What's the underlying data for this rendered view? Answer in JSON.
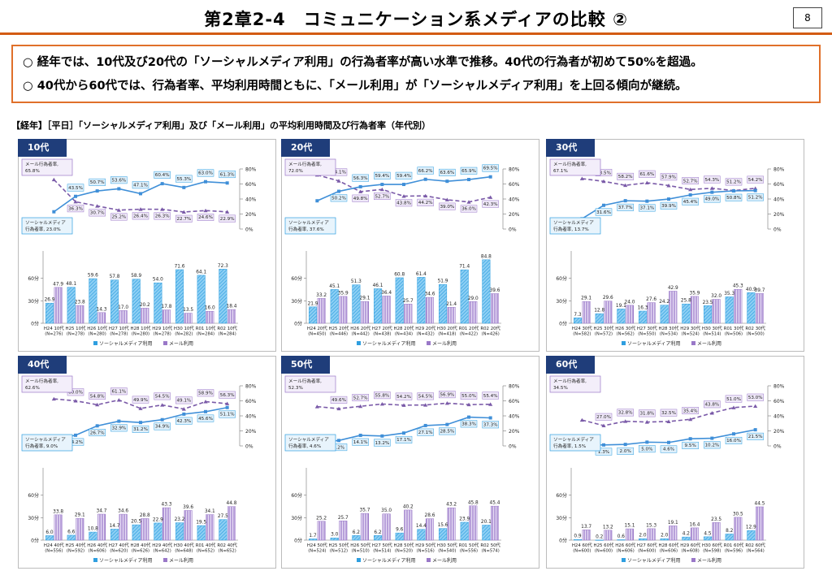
{
  "page": {
    "title": "第2章2-4　コミュニケーション系メディアの比較 ②",
    "page_number": "8",
    "summary": [
      "○ 経年では、10代及び20代の「ソーシャルメディア利用」の行為者率が高い水準で推移。40代の行為者が初めて50%を超過。",
      "○ 40代から60代では、行為者率、平均利用時間ともに、「メール利用」が「ソーシャルメディア利用」を上回る傾向が継続。"
    ],
    "caption": "【経年】［平日］「ソーシャルメディア利用」及び「メール利用」の平均利用時間及び行為者率（年代別）"
  },
  "colors": {
    "accent": "#d35b13",
    "tag": "#1f3d7a",
    "social": "#2f9fe0",
    "mail": "#9a78c8",
    "social_line": "#3f8fd8",
    "mail_line": "#7a5aa8"
  },
  "legend": {
    "social": "ソーシャルメディア利用",
    "mail": "メール利用"
  },
  "labels": {
    "rate_ticks": [
      "80%",
      "60%",
      "40%",
      "20%",
      "0%"
    ],
    "time_ticks": [
      "60分",
      "30分",
      "0分"
    ]
  },
  "chart_data": [
    {
      "type": "bar",
      "panel": "10代",
      "callout_mail": [
        "メール行為者率,",
        "65.8%"
      ],
      "callout_social": [
        "ソーシャルメディア",
        "行為者率, 23.0%"
      ],
      "callout_mail_side": "top",
      "callout_social_side": "bottom",
      "categories": [
        [
          "H24 10代",
          "(N=276)"
        ],
        [
          "H25 10代",
          "(N=278)"
        ],
        [
          "H26 10代",
          "(N=280)"
        ],
        [
          "H27 10代",
          "(N=278)"
        ],
        [
          "H28 10代",
          "(N=280)"
        ],
        [
          "H29 10代",
          "(N=278)"
        ],
        [
          "H30 10代",
          "(N=282)"
        ],
        [
          "R01 10代",
          "(N=284)"
        ],
        [
          "R02 10代",
          "(N=284)"
        ]
      ],
      "series": [
        {
          "name": "ソーシャルメディア利用",
          "values": [
            26.9,
            48.1,
            59.6,
            57.8,
            58.9,
            54.0,
            71.6,
            64.1,
            72.3
          ],
          "rate": [
            23.0,
            43.5,
            50.7,
            53.6,
            47.1,
            60.4,
            55.3,
            63.0,
            61.3
          ]
        },
        {
          "name": "メール利用",
          "values": [
            47.9,
            23.8,
            14.3,
            17.0,
            20.2,
            17.8,
            13.5,
            16.0,
            18.4
          ],
          "rate": [
            65.8,
            36.3,
            30.7,
            25.2,
            26.4,
            26.3,
            22.7,
            24.6,
            22.9
          ]
        }
      ],
      "ylim_time": [
        0,
        90
      ],
      "ylim_rate": [
        0,
        80
      ]
    },
    {
      "type": "bar",
      "panel": "20代",
      "callout_mail": [
        "メール行為者率,",
        "72.0%"
      ],
      "callout_social": [
        "ソーシャルメディア",
        "行為者率, 37.6%"
      ],
      "callout_mail_side": "top",
      "callout_social_side": "bottom",
      "categories": [
        [
          "H24 20代",
          "(N=450)"
        ],
        [
          "H25 20代",
          "(N=446)"
        ],
        [
          "H26 20代",
          "(N=442)"
        ],
        [
          "H27 20代",
          "(N=438)"
        ],
        [
          "H28 20代",
          "(N=434)"
        ],
        [
          "H29 20代",
          "(N=432)"
        ],
        [
          "H30 20代",
          "(N=418)"
        ],
        [
          "R01 20代",
          "(N=422)"
        ],
        [
          "R02 20代",
          "(N=426)"
        ]
      ],
      "series": [
        {
          "name": "ソーシャルメディア利用",
          "values": [
            21.9,
            45.1,
            51.3,
            46.1,
            60.8,
            61.4,
            51.9,
            71.4,
            84.8
          ],
          "rate": [
            37.6,
            50.2,
            56.3,
            59.4,
            59.4,
            66.2,
            63.6,
            65.9,
            69.5
          ]
        },
        {
          "name": "メール利用",
          "values": [
            33.2,
            35.9,
            29.1,
            36.4,
            25.7,
            34.6,
            21.4,
            29.0,
            39.6
          ],
          "rate": [
            72.0,
            64.1,
            49.8,
            52.7,
            43.8,
            44.2,
            39.0,
            36.0,
            42.3
          ]
        }
      ],
      "ylim_time": [
        0,
        90
      ],
      "ylim_rate": [
        0,
        80
      ]
    },
    {
      "type": "bar",
      "panel": "30代",
      "callout_mail": [
        "メール行為者率,",
        "67.1%"
      ],
      "callout_social": [
        "ソーシャルメディア",
        "行為者率, 13.7%"
      ],
      "callout_mail_side": "top",
      "callout_social_side": "bottom",
      "categories": [
        [
          "H24 30代",
          "(N=582)"
        ],
        [
          "H25 30代",
          "(N=572)"
        ],
        [
          "H26 30代",
          "(N=562)"
        ],
        [
          "H27 30代",
          "(N=550)"
        ],
        [
          "H28 30代",
          "(N=534)"
        ],
        [
          "H29 30代",
          "(N=524)"
        ],
        [
          "H30 30代",
          "(N=514)"
        ],
        [
          "R01 30代",
          "(N=506)"
        ],
        [
          "R02 30代",
          "(N=500)"
        ]
      ],
      "series": [
        {
          "name": "ソーシャルメディア利用",
          "values": [
            7.3,
            12.8,
            19.1,
            16.3,
            24.2,
            25.8,
            23.5,
            35.3,
            40.9
          ],
          "rate": [
            13.7,
            31.6,
            37.7,
            37.1,
            39.9,
            45.4,
            49.0,
            50.8,
            51.2
          ]
        },
        {
          "name": "メール利用",
          "values": [
            29.1,
            29.6,
            24.0,
            27.6,
            42.9,
            35.9,
            32.0,
            45.3,
            39.7
          ],
          "rate": [
            67.1,
            63.5,
            58.2,
            61.6,
            57.9,
            52.7,
            54.3,
            51.2,
            54.2
          ]
        }
      ],
      "ylim_time": [
        0,
        90
      ],
      "ylim_rate": [
        0,
        80
      ]
    },
    {
      "type": "bar",
      "panel": "40代",
      "callout_mail": [
        "メール行為者率,",
        "62.6%"
      ],
      "callout_social": [
        "ソーシャルメディア",
        "行為者率, 9.0%"
      ],
      "callout_mail_side": "top",
      "callout_social_side": "bottom",
      "categories": [
        [
          "H24 40代",
          "(N=556)"
        ],
        [
          "H25 40代",
          "(N=592)"
        ],
        [
          "H26 40代",
          "(N=606)"
        ],
        [
          "H27 40代",
          "(N=620)"
        ],
        [
          "H28 40代",
          "(N=626)"
        ],
        [
          "H29 40代",
          "(N=642)"
        ],
        [
          "H30 40代",
          "(N=648)"
        ],
        [
          "R01 40代",
          "(N=652)"
        ],
        [
          "R02 40代",
          "(N=652)"
        ]
      ],
      "series": [
        {
          "name": "ソーシャルメディア利用",
          "values": [
            6.0,
            6.6,
            10.8,
            14.7,
            20.5,
            22.9,
            23.2,
            19.5,
            27.5
          ],
          "rate": [
            9.0,
            14.2,
            26.7,
            32.9,
            31.2,
            34.9,
            42.3,
            45.6,
            51.1
          ]
        },
        {
          "name": "メール利用",
          "values": [
            33.8,
            29.1,
            34.7,
            34.6,
            28.8,
            43.3,
            39.6,
            34.1,
            44.8
          ],
          "rate": [
            62.6,
            60.0,
            54.8,
            61.1,
            49.9,
            54.5,
            49.1,
            58.9,
            56.3
          ]
        }
      ],
      "ylim_time": [
        0,
        90
      ],
      "ylim_rate": [
        0,
        80
      ]
    },
    {
      "type": "bar",
      "panel": "50代",
      "callout_mail": [
        "メール行為者率,",
        "52.3%"
      ],
      "callout_social": [
        "ソーシャルメディア",
        "行為者率, 4.6%"
      ],
      "callout_mail_side": "top",
      "callout_social_side": "bottom",
      "categories": [
        [
          "H24 50代",
          "(N=524)"
        ],
        [
          "H25 50代",
          "(N=512)"
        ],
        [
          "H26 50代",
          "(N=510)"
        ],
        [
          "H27 50代",
          "(N=514)"
        ],
        [
          "H28 50代",
          "(N=520)"
        ],
        [
          "H29 50代",
          "(N=516)"
        ],
        [
          "H30 50代",
          "(N=540)"
        ],
        [
          "R01 50代",
          "(N=556)"
        ],
        [
          "R02 50代",
          "(N=574)"
        ]
      ],
      "series": [
        {
          "name": "ソーシャルメディア利用",
          "values": [
            1.7,
            3.0,
            6.2,
            6.2,
            9.6,
            14.4,
            15.6,
            23.9,
            20.1
          ],
          "rate": [
            4.6,
            7.2,
            14.1,
            13.2,
            17.1,
            27.1,
            28.5,
            38.3,
            37.3
          ]
        },
        {
          "name": "メール利用",
          "values": [
            25.2,
            25.7,
            35.7,
            35.0,
            40.2,
            28.6,
            43.2,
            45.8,
            45.4
          ],
          "rate": [
            52.3,
            49.6,
            52.7,
            55.8,
            54.2,
            54.5,
            56.9,
            55.0,
            55.4
          ]
        }
      ],
      "ylim_time": [
        0,
        90
      ],
      "ylim_rate": [
        0,
        80
      ]
    },
    {
      "type": "bar",
      "panel": "60代",
      "callout_mail": [
        "メール行為者率,",
        "34.5%"
      ],
      "callout_social": [
        "ソーシャルメディア",
        "行為者率, 1.5%"
      ],
      "callout_mail_side": "top",
      "callout_social_side": "bottom",
      "categories": [
        [
          "H24 60代",
          "(N=600)"
        ],
        [
          "H25 60代",
          "(N=600)"
        ],
        [
          "H26 60代",
          "(N=606)"
        ],
        [
          "H27 60代",
          "(N=600)"
        ],
        [
          "H28 60代",
          "(N=606)"
        ],
        [
          "H29 60代",
          "(N=608)"
        ],
        [
          "H30 60代",
          "(N=598)"
        ],
        [
          "R01 60代",
          "(N=596)"
        ],
        [
          "R02 60代",
          "(N=564)"
        ]
      ],
      "series": [
        {
          "name": "ソーシャルメディア利用",
          "values": [
            0.9,
            0.2,
            0.6,
            2.0,
            2.0,
            4.2,
            4.5,
            8.2,
            12.9
          ],
          "rate": [
            1.5,
            1.3,
            2.0,
            5.0,
            4.6,
            9.5,
            10.2,
            16.0,
            21.5
          ]
        },
        {
          "name": "メール利用",
          "values": [
            13.7,
            13.2,
            15.1,
            15.3,
            19.1,
            16.4,
            23.5,
            30.5,
            44.5
          ],
          "rate": [
            34.5,
            27.0,
            32.8,
            31.8,
            32.5,
            35.4,
            43.8,
            51.0,
            53.0
          ]
        }
      ],
      "ylim_time": [
        0,
        90
      ],
      "ylim_rate": [
        0,
        80
      ]
    }
  ]
}
